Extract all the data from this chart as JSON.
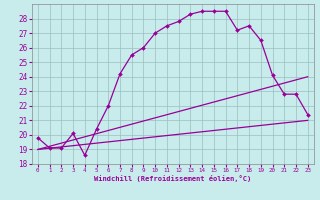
{
  "xlabel": "Windchill (Refroidissement éolien,°C)",
  "ylabel": "",
  "bg_color": "#c8ecec",
  "line_color": "#990099",
  "grid_color": "#9bbfbf",
  "xlim": [
    -0.5,
    23.5
  ],
  "ylim": [
    18,
    29
  ],
  "yticks": [
    18,
    19,
    20,
    21,
    22,
    23,
    24,
    25,
    26,
    27,
    28
  ],
  "xticks": [
    0,
    1,
    2,
    3,
    4,
    5,
    6,
    7,
    8,
    9,
    10,
    11,
    12,
    13,
    14,
    15,
    16,
    17,
    18,
    19,
    20,
    21,
    22,
    23
  ],
  "line1_x": [
    0,
    1,
    2,
    3,
    4,
    5,
    6,
    7,
    8,
    9,
    10,
    11,
    12,
    13,
    14,
    15,
    16,
    17,
    18,
    19,
    20,
    21,
    22,
    23
  ],
  "line1_y": [
    19.8,
    19.1,
    19.1,
    20.1,
    18.6,
    20.4,
    22.0,
    24.2,
    25.5,
    26.0,
    27.0,
    27.5,
    27.8,
    28.3,
    28.5,
    28.5,
    28.5,
    27.2,
    27.5,
    26.5,
    24.1,
    22.8,
    22.8,
    21.4
  ],
  "line2_x": [
    0,
    23
  ],
  "line2_y": [
    19.0,
    24.0
  ],
  "line3_x": [
    0,
    23
  ],
  "line3_y": [
    19.0,
    21.0
  ]
}
